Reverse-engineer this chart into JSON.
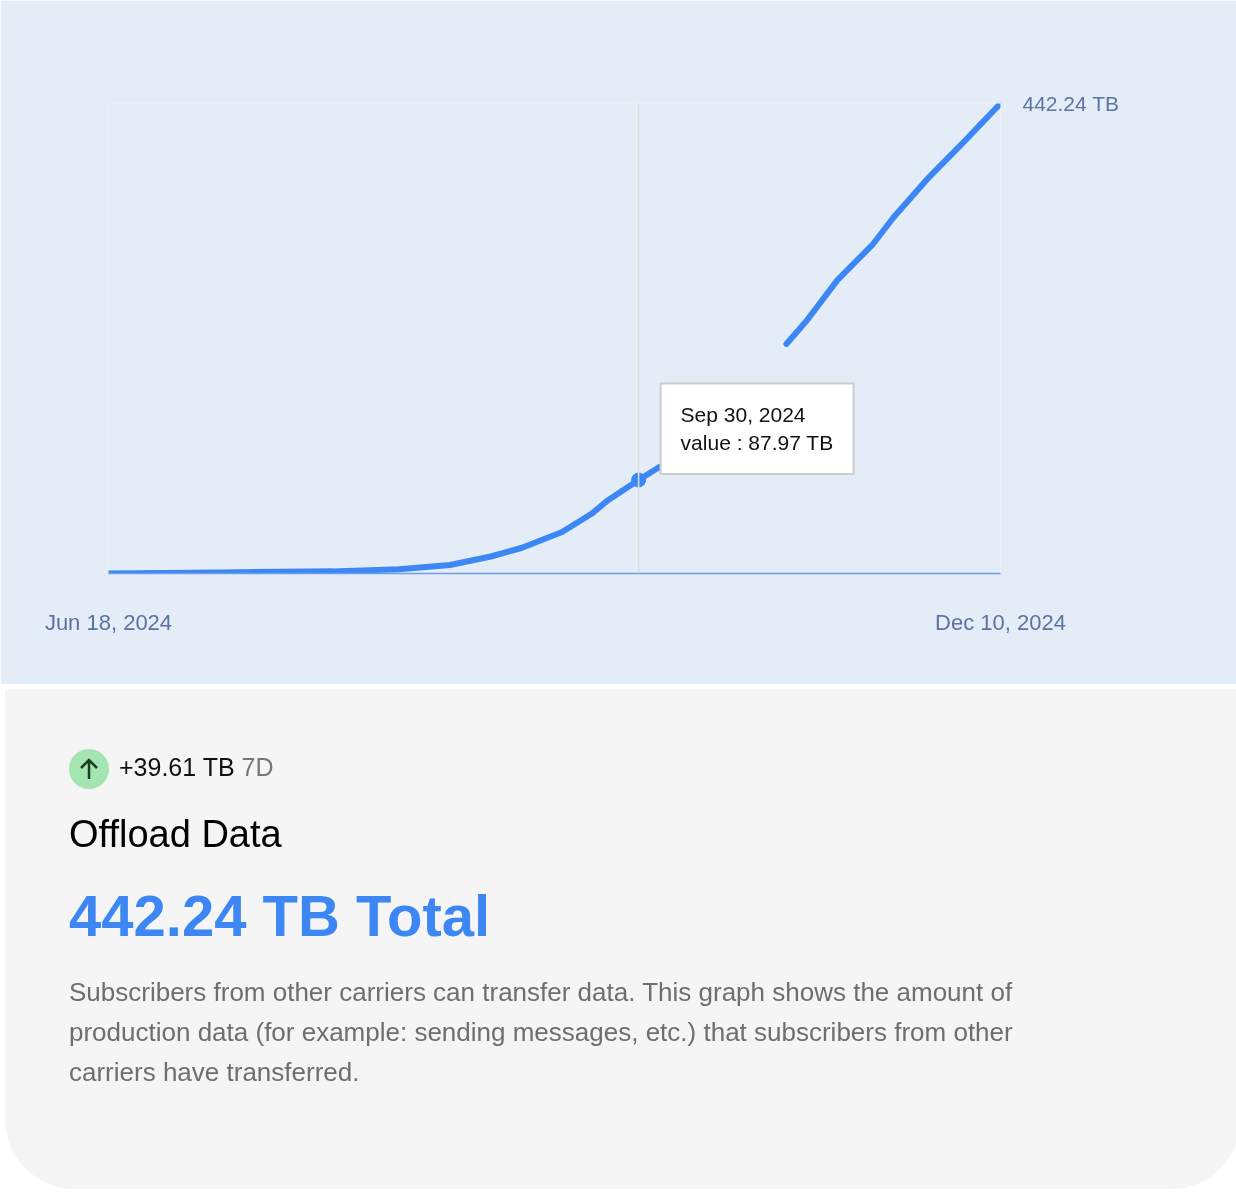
{
  "chart_data": {
    "type": "line",
    "title": "Offload Data",
    "subtitle": "442.24 TB Total",
    "x": [
      "2024-06-18",
      "2024-07-10",
      "2024-08-01",
      "2024-08-14",
      "2024-08-24",
      "2024-09-01",
      "2024-09-07",
      "2024-09-15",
      "2024-09-21",
      "2024-09-24",
      "2024-09-30",
      "2024-10-04",
      "2024-10-16",
      "2024-10-29",
      "2024-11-02",
      "2024-11-08",
      "2024-11-15",
      "2024-11-19",
      "2024-11-26",
      "2024-12-03",
      "2024-12-10"
    ],
    "series": [
      {
        "color": "#3d87f5",
        "values": [
          0,
          1,
          2,
          4,
          8,
          16,
          24,
          39,
          57,
          69,
          87.97,
          100,
          null,
          216,
          238,
          276,
          310,
          335,
          373,
          407,
          442.24
        ],
        "value_labels": [
          null,
          null,
          null,
          null,
          null,
          null,
          null,
          null,
          null,
          null,
          null,
          null,
          null,
          null,
          null,
          null,
          null,
          null,
          null,
          null,
          "442.24 TB"
        ]
      }
    ],
    "xlim": [
      "2024-06-18",
      "2024-12-10"
    ],
    "xticks": [
      {
        "value": "2024-06-18",
        "label": "Jun 18, 2024"
      },
      {
        "value": "2024-12-10",
        "label": "Dec 10, 2024"
      }
    ],
    "ylim": [
      0,
      442.24
    ],
    "tick_labels": "x",
    "grid": false,
    "marker": "none",
    "line_style": "solid",
    "ref_lines": [
      {
        "axis": "x",
        "value": "2024-09-30",
        "label": null,
        "color": "#dcdcdc"
      }
    ],
    "annotations": [
      "+39.61 TB",
      "7D",
      "Subscribers from other carriers can transfer data. This graph shows the amount of production data (for example: sending messages, etc.) that subscribers from other carriers have transferred.",
      {
        "text": "Sep 30, 2024\nvalue : 87.97 TB",
        "x": "2024-09-30",
        "y": 87.97
      }
    ]
  }
}
